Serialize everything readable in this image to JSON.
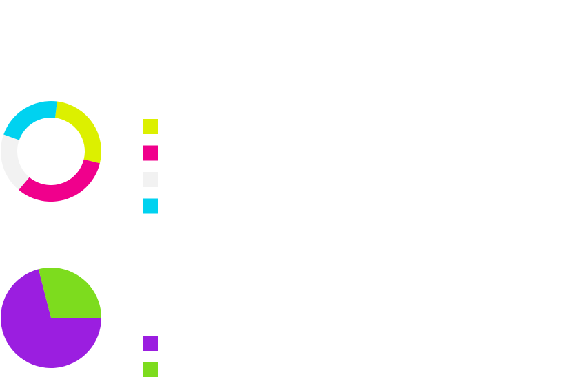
{
  "chart_data": [
    {
      "type": "pie",
      "variant": "donut",
      "title": "",
      "legend": "right",
      "slices": [
        {
          "label": "",
          "value": 25,
          "color": "#dcf000"
        },
        {
          "label": "",
          "value": 30,
          "color": "#f0008c"
        },
        {
          "label": "",
          "value": 18,
          "color": "#f2f2f2"
        },
        {
          "label": "",
          "value": 20,
          "color": "#00d2f0"
        }
      ]
    },
    {
      "type": "pie",
      "title": "",
      "legend": "right",
      "slices": [
        {
          "label": "",
          "value": 71,
          "color": "#9b1ee0"
        },
        {
          "label": "",
          "value": 29,
          "color": "#7ddc1e"
        }
      ]
    }
  ]
}
